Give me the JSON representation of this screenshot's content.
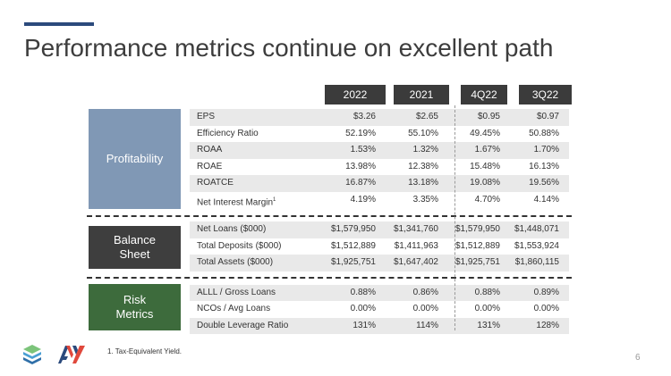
{
  "title": "Performance metrics continue on excellent path",
  "columns": [
    "2022",
    "2021",
    "4Q22",
    "3Q22"
  ],
  "sections": {
    "profitability": {
      "label": "Profitability",
      "rows": [
        {
          "name": "EPS",
          "values": [
            "$3.26",
            "$2.65",
            "$0.95",
            "$0.97"
          ]
        },
        {
          "name": "Efficiency Ratio",
          "values": [
            "52.19%",
            "55.10%",
            "49.45%",
            "50.88%"
          ]
        },
        {
          "name": "ROAA",
          "values": [
            "1.53%",
            "1.32%",
            "1.67%",
            "1.70%"
          ]
        },
        {
          "name": "ROAE",
          "values": [
            "13.98%",
            "12.38%",
            "15.48%",
            "16.13%"
          ]
        },
        {
          "name": "ROATCE",
          "values": [
            "16.87%",
            "13.18%",
            "19.08%",
            "19.56%"
          ]
        },
        {
          "name": "Net Interest Margin",
          "sup": "1",
          "values": [
            "4.19%",
            "3.35%",
            "4.70%",
            "4.14%"
          ]
        }
      ]
    },
    "balance_sheet": {
      "label_line1": "Balance",
      "label_line2": "Sheet",
      "rows": [
        {
          "name": "Net Loans ($000)",
          "values": [
            "$1,579,950",
            "$1,341,760",
            "$1,579,950",
            "$1,448,071"
          ]
        },
        {
          "name": "Total Deposits ($000)",
          "values": [
            "$1,512,889",
            "$1,411,963",
            "$1,512,889",
            "$1,553,924"
          ]
        },
        {
          "name": "Total Assets ($000)",
          "values": [
            "$1,925,751",
            "$1,647,402",
            "$1,925,751",
            "$1,860,115"
          ]
        }
      ]
    },
    "risk_metrics": {
      "label_line1": "Risk",
      "label_line2": "Metrics",
      "rows": [
        {
          "name": "ALLL / Gross Loans",
          "values": [
            "0.88%",
            "0.86%",
            "0.88%",
            "0.89%"
          ]
        },
        {
          "name": "NCOs / Avg Loans",
          "values": [
            "0.00%",
            "0.00%",
            "0.00%",
            "0.00%"
          ]
        },
        {
          "name": "Double Leverage Ratio",
          "values": [
            "131%",
            "114%",
            "131%",
            "128%"
          ]
        }
      ]
    }
  },
  "footnote": "1.   Tax-Equivalent Yield.",
  "page_number": "6",
  "colors": {
    "accent": "#2b4a7c",
    "profitability": "#8098b5",
    "balance_sheet": "#3e3e3e",
    "risk_metrics": "#3d6b3c",
    "header": "#3b3b3b"
  },
  "icons": [
    "stacked-layers-logo-icon",
    "av-logo-icon"
  ]
}
